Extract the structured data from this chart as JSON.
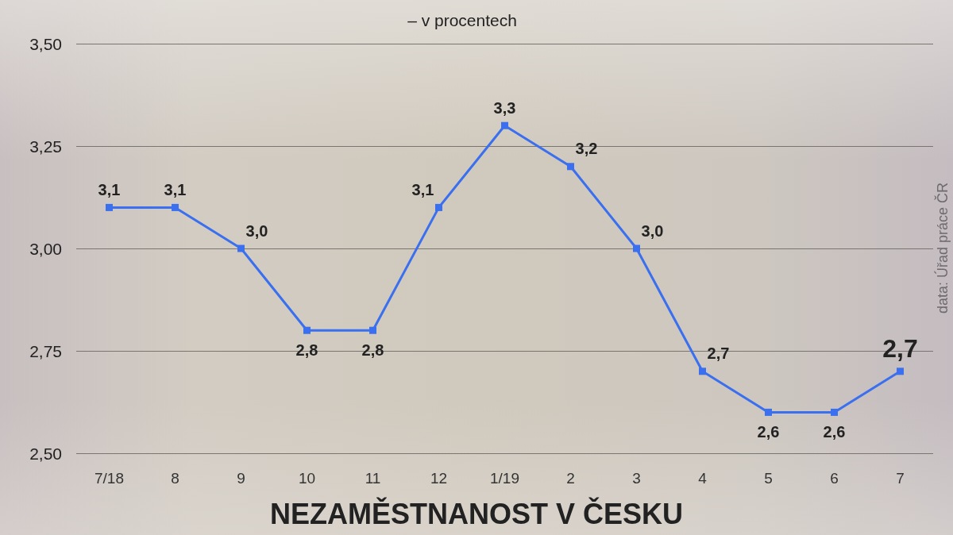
{
  "chart_data": {
    "type": "line",
    "title": "NEZAMĚSTNANOST V ČESKU",
    "subtitle": "– v procentech",
    "annotations": [
      "data: Úřad práce ČR"
    ],
    "categories": [
      "7/18",
      "8",
      "9",
      "10",
      "11",
      "12",
      "1/19",
      "2",
      "3",
      "4",
      "5",
      "6",
      "7"
    ],
    "series": [
      {
        "color": "#3a6ff0",
        "values": [
          3.1,
          3.1,
          3.0,
          2.8,
          2.8,
          3.1,
          3.3,
          3.2,
          3.0,
          2.7,
          2.6,
          2.6,
          2.7
        ],
        "value_labels": [
          "3,1",
          "3,1",
          "3,0",
          "2,8",
          "2,8",
          "3,1",
          "3,3",
          "3,2",
          "3,0",
          "2,7",
          "2,6",
          "2,6",
          "2,7"
        ]
      }
    ],
    "ylim": [
      2.5,
      3.5
    ],
    "yticks": [
      {
        "value": 2.5,
        "label": "2,50"
      },
      {
        "value": 2.75,
        "label": "2,75"
      },
      {
        "value": 3.0,
        "label": "3,00"
      },
      {
        "value": 3.25,
        "label": "3,25"
      },
      {
        "value": 3.5,
        "label": "3,50"
      }
    ],
    "grid": "y",
    "marker": "square",
    "line_style": "solid"
  }
}
